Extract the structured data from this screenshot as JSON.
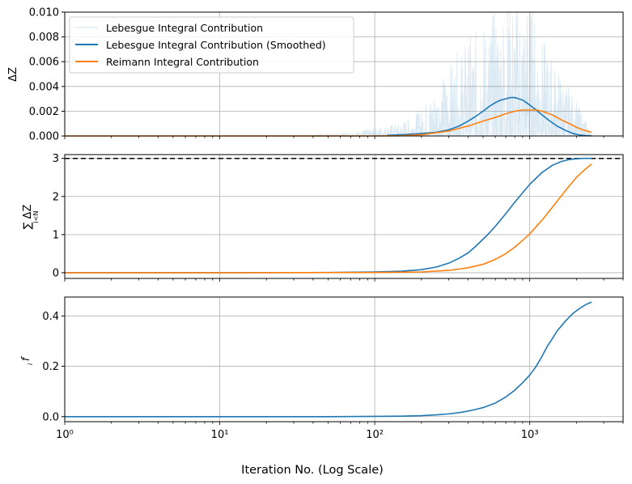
{
  "chart_data": [
    {
      "type": "line",
      "panel": "top",
      "ylabel": "ΔZ",
      "xscale": "log",
      "xlim": [
        1,
        4000
      ],
      "ylim": [
        0,
        0.01
      ],
      "yticks": [
        "0.000",
        "0.002",
        "0.004",
        "0.006",
        "0.008",
        "0.010"
      ],
      "grid": true,
      "legend": {
        "placement": "upper-left",
        "entries": [
          "Lebesgue Integral Contribution",
          "Lebesgue Integral Contribution (Smoothed)",
          "Reimann Integral Contribution"
        ]
      },
      "series": [
        {
          "name": "Lebesgue Integral Contribution",
          "color": "#1f77b4",
          "style": "thin translucent noisy",
          "x": [
            1,
            10,
            60,
            100,
            150,
            200,
            300,
            400,
            500,
            600,
            700,
            800,
            900,
            1000,
            1200,
            1500,
            2000,
            2500
          ],
          "envelope_max": [
            0,
            0,
            0.0002,
            0.0006,
            0.001,
            0.002,
            0.005,
            0.007,
            0.008,
            0.009,
            0.01,
            0.01,
            0.01,
            0.01,
            0.007,
            0.005,
            0.0025,
            0.0004
          ]
        },
        {
          "name": "Lebesgue Integral Contribution (Smoothed)",
          "color": "#1f77b4",
          "x": [
            120,
            150,
            200,
            250,
            300,
            350,
            400,
            450,
            500,
            550,
            600,
            650,
            700,
            750,
            800,
            850,
            900,
            950,
            1000,
            1100,
            1200,
            1350,
            1500,
            1700,
            1900,
            2100,
            2300,
            2500
          ],
          "y": [
            5e-05,
            0.0001,
            0.0002,
            0.0003,
            0.0005,
            0.0008,
            0.0012,
            0.0016,
            0.002,
            0.0024,
            0.0027,
            0.0029,
            0.003,
            0.0031,
            0.0031,
            0.003,
            0.0029,
            0.0027,
            0.0025,
            0.0021,
            0.0017,
            0.0012,
            0.0008,
            0.00045,
            0.0002,
            8e-05,
            3e-05,
            1e-05
          ]
        },
        {
          "name": "Reimann Integral Contribution",
          "color": "#ff7f0e",
          "x": [
            1,
            10,
            100,
            150,
            200,
            300,
            400,
            500,
            600,
            700,
            800,
            900,
            1000,
            1100,
            1200,
            1400,
            1600,
            1800,
            2000,
            2200,
            2500
          ],
          "y": [
            0,
            0,
            0,
            2e-05,
            0.0001,
            0.0004,
            0.0008,
            0.0012,
            0.0015,
            0.0018,
            0.002,
            0.0021,
            0.0021,
            0.0021,
            0.002,
            0.0017,
            0.0013,
            0.001,
            0.0007,
            0.0005,
            0.0003
          ]
        }
      ]
    },
    {
      "type": "line",
      "panel": "middle",
      "ylabel": "∑ ΔZ",
      "ylabel_sub": "i<N",
      "xscale": "log",
      "xlim": [
        1,
        4000
      ],
      "ylim": [
        -0.15,
        3.1
      ],
      "yticks": [
        "0",
        "1",
        "2",
        "3"
      ],
      "grid": true,
      "hline": {
        "y": 3,
        "style": "dashed",
        "color": "#000000"
      },
      "series": [
        {
          "color": "#1f77b4",
          "x": [
            1,
            10,
            50,
            100,
            150,
            200,
            250,
            300,
            350,
            400,
            450,
            500,
            550,
            600,
            700,
            800,
            900,
            1000,
            1200,
            1400,
            1600,
            1800,
            2000,
            2200,
            2500
          ],
          "y": [
            0,
            0,
            0.005,
            0.02,
            0.04,
            0.08,
            0.15,
            0.25,
            0.38,
            0.52,
            0.7,
            0.88,
            1.05,
            1.22,
            1.55,
            1.85,
            2.1,
            2.32,
            2.63,
            2.82,
            2.92,
            2.97,
            2.99,
            3.0,
            3.0
          ]
        },
        {
          "color": "#ff7f0e",
          "x": [
            1,
            10,
            100,
            200,
            300,
            400,
            500,
            600,
            700,
            800,
            900,
            1000,
            1200,
            1400,
            1600,
            1800,
            2000,
            2200,
            2500
          ],
          "y": [
            0,
            0,
            0.005,
            0.02,
            0.06,
            0.13,
            0.22,
            0.35,
            0.5,
            0.67,
            0.85,
            1.02,
            1.38,
            1.72,
            2.02,
            2.28,
            2.5,
            2.66,
            2.85
          ]
        }
      ]
    },
    {
      "type": "line",
      "panel": "bottom",
      "ylabel": "f",
      "ylabel_sub": "i",
      "xscale": "log",
      "xlim": [
        1,
        4000
      ],
      "ylim": [
        -0.02,
        0.475
      ],
      "yticks": [
        "0.0",
        "0.2",
        "0.4"
      ],
      "xticks": [
        "10⁰",
        "10¹",
        "10²",
        "10³"
      ],
      "xlabel": "Iteration No. (Log Scale)",
      "grid": true,
      "series": [
        {
          "color": "#1f77b4",
          "x": [
            1,
            10,
            50,
            100,
            150,
            200,
            250,
            300,
            350,
            400,
            450,
            500,
            600,
            700,
            800,
            900,
            1000,
            1100,
            1200,
            1300,
            1400,
            1500,
            1700,
            1900,
            2100,
            2300,
            2500
          ],
          "y": [
            0,
            0,
            0,
            0.001,
            0.002,
            0.004,
            0.007,
            0.011,
            0.016,
            0.022,
            0.029,
            0.036,
            0.054,
            0.078,
            0.105,
            0.135,
            0.165,
            0.2,
            0.24,
            0.28,
            0.31,
            0.34,
            0.38,
            0.41,
            0.43,
            0.445,
            0.455
          ]
        }
      ]
    }
  ]
}
